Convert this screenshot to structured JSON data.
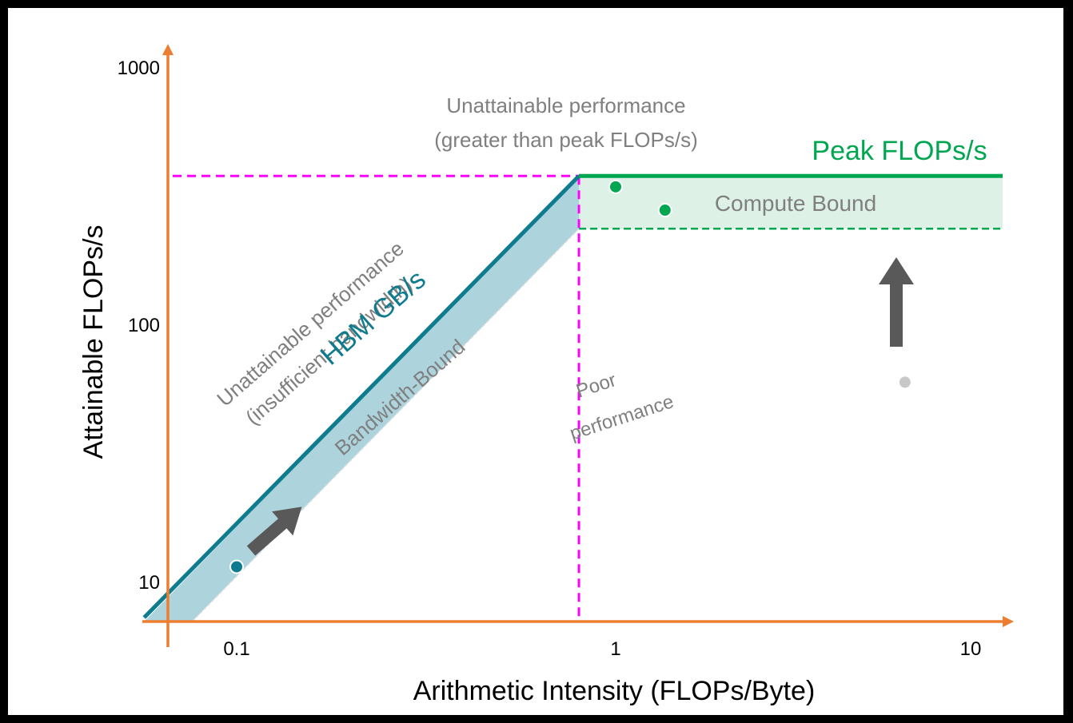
{
  "chart_data": {
    "type": "line",
    "title": "",
    "xlabel": "Arithmetic Intensity (FLOPs/Byte)",
    "ylabel": "Attainable FLOPs/s",
    "x_scale": "log",
    "y_scale": "log",
    "x_ticks": [
      {
        "value": 0.1,
        "label": "0.1"
      },
      {
        "value": 1,
        "label": "1"
      },
      {
        "value": 10,
        "label": "10"
      }
    ],
    "y_ticks": [
      {
        "value": 10,
        "label": "10"
      },
      {
        "value": 100,
        "label": "100"
      },
      {
        "value": 1000,
        "label": "1000"
      }
    ],
    "xlim": [
      0.057,
      11
    ],
    "ylim": [
      7.3,
      1080
    ],
    "grid": false,
    "ridge_point": {
      "x": 0.8,
      "y": 380
    },
    "series": [
      {
        "name": "HBM GB/s",
        "points": [
          [
            0.057,
            7.3
          ],
          [
            0.8,
            380
          ]
        ]
      },
      {
        "name": "Peak FLOPs/s",
        "points": [
          [
            0.8,
            380
          ],
          [
            10.5,
            380
          ]
        ]
      }
    ],
    "regions": [
      {
        "name": "Bandwidth-Bound"
      },
      {
        "name": "Compute Bound"
      }
    ],
    "points": [
      {
        "x": 0.1,
        "y": 11.5,
        "group": "bandwidth"
      },
      {
        "x": 1.0,
        "y": 345,
        "group": "compute"
      },
      {
        "x": 1.35,
        "y": 280,
        "group": "compute"
      },
      {
        "x": 5.8,
        "y": 60,
        "group": "poor"
      }
    ],
    "annotations": {
      "unattainable_top_line1": "Unattainable performance",
      "unattainable_top_line2": "(greater than peak FLOPs/s)",
      "peak_label": "Peak FLOPs/s",
      "compute_bound": "Compute Bound",
      "unattainable_bw_line1": "Unattainable performance",
      "unattainable_bw_line2": "(insufficient bandwidth)",
      "hbm_label": "HBM GB/s",
      "bandwidth_bound": "Bandwidth-Bound",
      "poor_line1": "Poor",
      "poor_line2": "performance"
    },
    "colors": {
      "axis": "#ED7D31",
      "bandwidth_line": "#0E7C8E",
      "bandwidth_fill": "#ADD4DD",
      "peak_line": "#00A650",
      "compute_fill": "#DDF1E6",
      "guide": "#FF00FF",
      "arrow": "#595959",
      "annotation_text": "#7F7F7F",
      "poor_point": "#C8C8C8"
    }
  }
}
